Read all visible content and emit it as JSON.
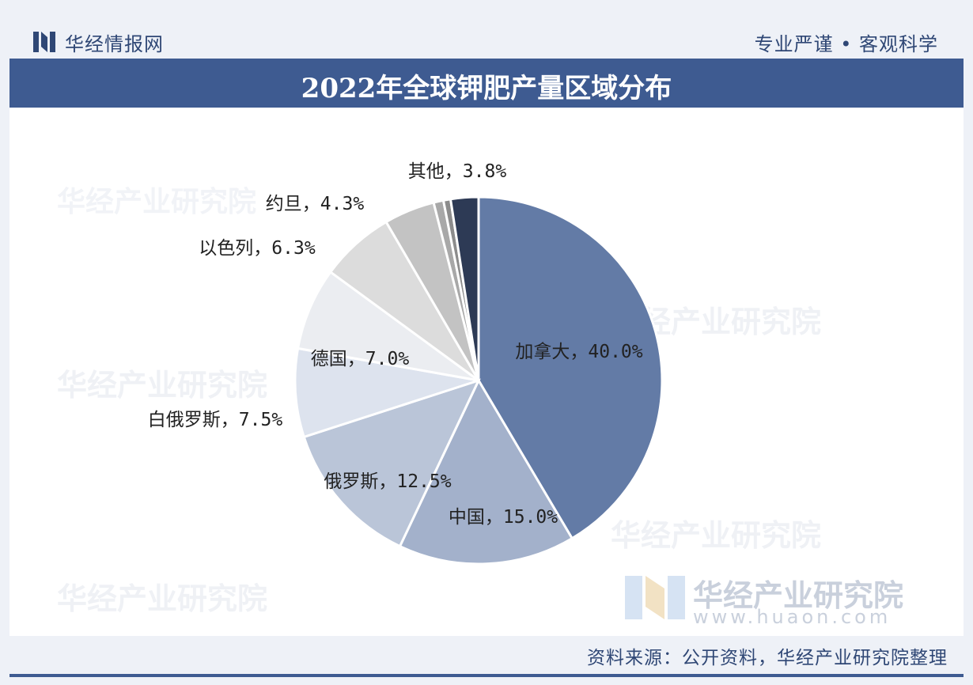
{
  "header": {
    "brand": "华经情报网",
    "slogan": "专业严谨 • 客观科学"
  },
  "title": "2022年全球钾肥产量区域分布",
  "watermark": {
    "text": "华经产业研究院",
    "url": "www.huaon.com"
  },
  "footer": {
    "source": "资料来源：公开资料，华经产业研究院整理"
  },
  "colors": {
    "header_bg": "#3e5b91",
    "brand_text": "#2f4775"
  },
  "chart_data": {
    "type": "pie",
    "title": "2022年全球钾肥产量区域分布",
    "categories": [
      "加拿大",
      "中国",
      "俄罗斯",
      "白俄罗斯",
      "德国",
      "以色列",
      "约旦",
      "其他"
    ],
    "values": [
      40.0,
      15.0,
      12.5,
      7.5,
      7.0,
      6.3,
      4.3,
      3.8
    ],
    "labels": [
      "加拿大，40.0%",
      "中国，15.0%",
      "俄罗斯，12.5%",
      "白俄罗斯，7.5%",
      "德国，7.0%",
      "以色列，6.3%",
      "约旦，4.3%",
      "其他，3.8%"
    ],
    "unit": "%",
    "colors": [
      "#637ba6",
      "#a3b1cb",
      "#bac5d8",
      "#dde3ee",
      "#ebedf1",
      "#dcdcdc",
      "#c3c3c3",
      "#a8a8a8",
      "#8c8c8c",
      "#2d3a55"
    ],
    "start": "12 o'clock",
    "direction": "clockwise"
  }
}
